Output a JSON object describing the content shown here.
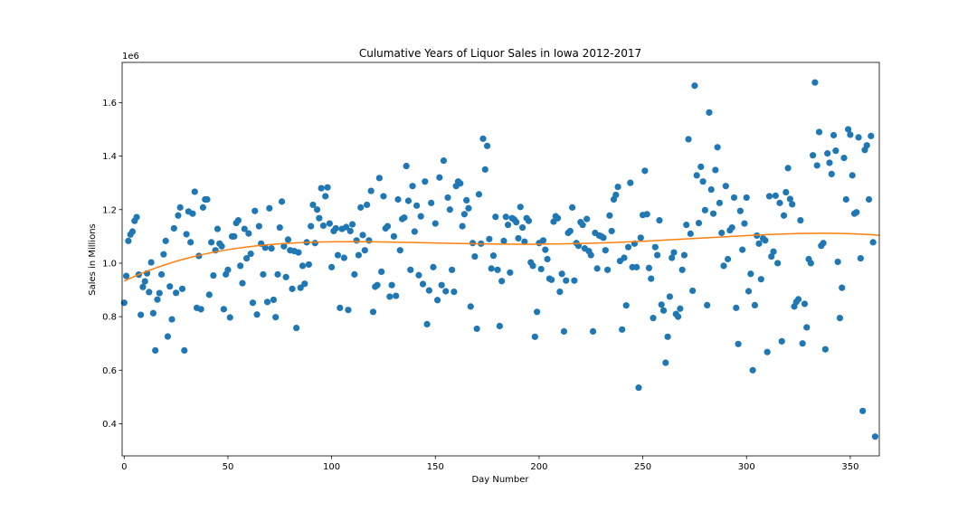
{
  "chart_data": {
    "type": "scatter",
    "title": "Culumative Years of Liquor Sales in Iowa 2012-2017",
    "xlabel": "Day Number",
    "ylabel": "Sales in Millions",
    "offset_text": "1e6",
    "xlim": [
      -1,
      364
    ],
    "ylim": [
      280000,
      1750000
    ],
    "x_ticks": [
      0,
      50,
      100,
      150,
      200,
      250,
      300,
      350
    ],
    "x_tick_labels": [
      "0",
      "50",
      "100",
      "150",
      "200",
      "250",
      "300",
      "350"
    ],
    "y_ticks": [
      400000,
      600000,
      800000,
      1000000,
      1200000,
      1400000,
      1600000
    ],
    "y_tick_labels": [
      "0.4",
      "0.6",
      "0.8",
      "1.0",
      "1.2",
      "1.4",
      "1.6"
    ],
    "grid": false,
    "colors": {
      "points": "#1f77b4",
      "trend": "#ff7f0e"
    },
    "trend_polynomial": [
      933000,
      3680,
      -31.9,
      0.1108,
      -0.0001302
    ],
    "series": [
      {
        "values_by_day": [
          852000,
          952000,
          1083000,
          1107000,
          1118000,
          1158000,
          1172000,
          957000,
          807000,
          911000,
          932000,
          962000,
          892000,
          1003000,
          813000,
          674000,
          864000,
          888000,
          958000,
          1033000,
          1083000,
          726000,
          913000,
          790000,
          1130000,
          889000,
          1178000,
          1208000,
          904000,
          674000,
          1108000,
          1193000,
          1078000,
          1185000,
          1267000,
          833000,
          1027000,
          828000,
          1208000,
          1238000,
          1238000,
          882000,
          1078000,
          954000,
          1048000,
          1128000,
          1073000,
          1063000,
          828000,
          958000,
          975000,
          797000,
          1100000,
          1100000,
          1150000,
          1160000,
          990000,
          925000,
          1128000,
          1018000,
          1111000,
          1035000,
          852000,
          1195000,
          808000,
          1138000,
          1073000,
          958000,
          1058000,
          855000,
          1205000,
          1055000,
          863000,
          798000,
          958000,
          1133000,
          1230000,
          1063000,
          948000,
          1088000,
          1048000,
          904000,
          1045000,
          758000,
          1040000,
          908000,
          990000,
          923000,
          1078000,
          995000,
          1138000,
          1218000,
          1075000,
          1200000,
          1168000,
          1280000,
          1140000,
          1250000,
          1283000,
          1148000,
          985000,
          1120000,
          1130000,
          1030000,
          833000,
          1128000,
          1020000,
          1135000,
          825000,
          1120000,
          1145000,
          958000,
          1085000,
          1030000,
          1208000,
          1105000,
          1048000,
          1218000,
          1085000,
          1270000,
          818000,
          912000,
          918000,
          1318000,
          968000,
          1250000,
          1130000,
          1138000,
          875000,
          918000,
          1100000,
          878000,
          1238000,
          1048000,
          1165000,
          1170000,
          1363000,
          1233000,
          975000,
          1288000,
          1118000,
          1215000,
          955000,
          1175000,
          922000,
          1305000,
          772000,
          898000,
          1225000,
          985000,
          1148000,
          862000,
          1320000,
          918000,
          1383000,
          895000,
          1245000,
          1200000,
          975000,
          893000,
          1288000,
          1305000,
          1298000,
          1138000,
          1183000,
          1235000,
          1205000,
          838000,
          1075000,
          1025000,
          755000,
          1257000,
          1073000,
          1465000,
          1350000,
          1438000,
          1090000,
          980000,
          1028000,
          1173000,
          975000,
          765000,
          933000,
          1083000,
          1173000,
          1143000,
          965000,
          1168000,
          1163000,
          1153000,
          1093000,
          1210000,
          1133000,
          1080000,
          1168000,
          1158000,
          1003000,
          990000,
          725000,
          818000,
          1075000,
          978000,
          1085000,
          1050000,
          1015000,
          942000,
          938000,
          1155000,
          1175000,
          1168000,
          893000,
          960000,
          745000,
          935000,
          1113000,
          1120000,
          1208000,
          935000,
          1075000,
          1065000,
          1153000,
          1143000,
          1055000,
          1165000,
          1045000,
          1030000,
          745000,
          1113000,
          980000,
          1103000,
          1100000,
          1095000,
          1048000,
          975000,
          1178000,
          1120000,
          1238000,
          1255000,
          1285000,
          1008000,
          752000,
          1020000,
          842000,
          1060000,
          1300000,
          985000,
          1073000,
          985000,
          535000,
          1095000,
          1180000,
          1345000,
          1183000,
          982000,
          942000,
          795000,
          1060000,
          1030000,
          1160000,
          845000,
          823000,
          628000,
          725000,
          875000,
          1020000,
          1040000,
          810000,
          800000,
          830000,
          975000,
          1030000,
          1143000,
          1463000,
          1110000,
          897000,
          1663000,
          1328000,
          1150000,
          1360000,
          1305000,
          1198000,
          843000,
          1563000,
          1275000,
          1185000,
          1348000,
          1433000,
          1225000,
          1113000,
          990000,
          1288000,
          1015000,
          1123000,
          1133000,
          1245000,
          833000,
          698000,
          1195000,
          1050000,
          1148000,
          1245000,
          895000,
          960000,
          600000,
          843000,
          1103000,
          1073000,
          940000,
          1092000,
          1085000,
          668000,
          1250000,
          1025000,
          1043000,
          1252000,
          1000000,
          1225000,
          708000,
          1178000,
          1265000,
          1355000,
          1240000,
          1220000,
          838000,
          855000,
          865000,
          1160000,
          700000,
          848000,
          760000,
          1015000,
          1000000,
          1403000,
          1675000,
          1365000,
          1490000,
          1065000,
          1075000,
          678000,
          1410000,
          1375000,
          1333000,
          1478000,
          1420000,
          1005000,
          795000,
          908000,
          1393000,
          1238000,
          1500000,
          1480000,
          1328000,
          1185000,
          1190000,
          1470000,
          1018000,
          448000,
          1423000,
          1440000,
          1238000,
          1475000,
          1078000,
          352000
        ]
      }
    ]
  }
}
